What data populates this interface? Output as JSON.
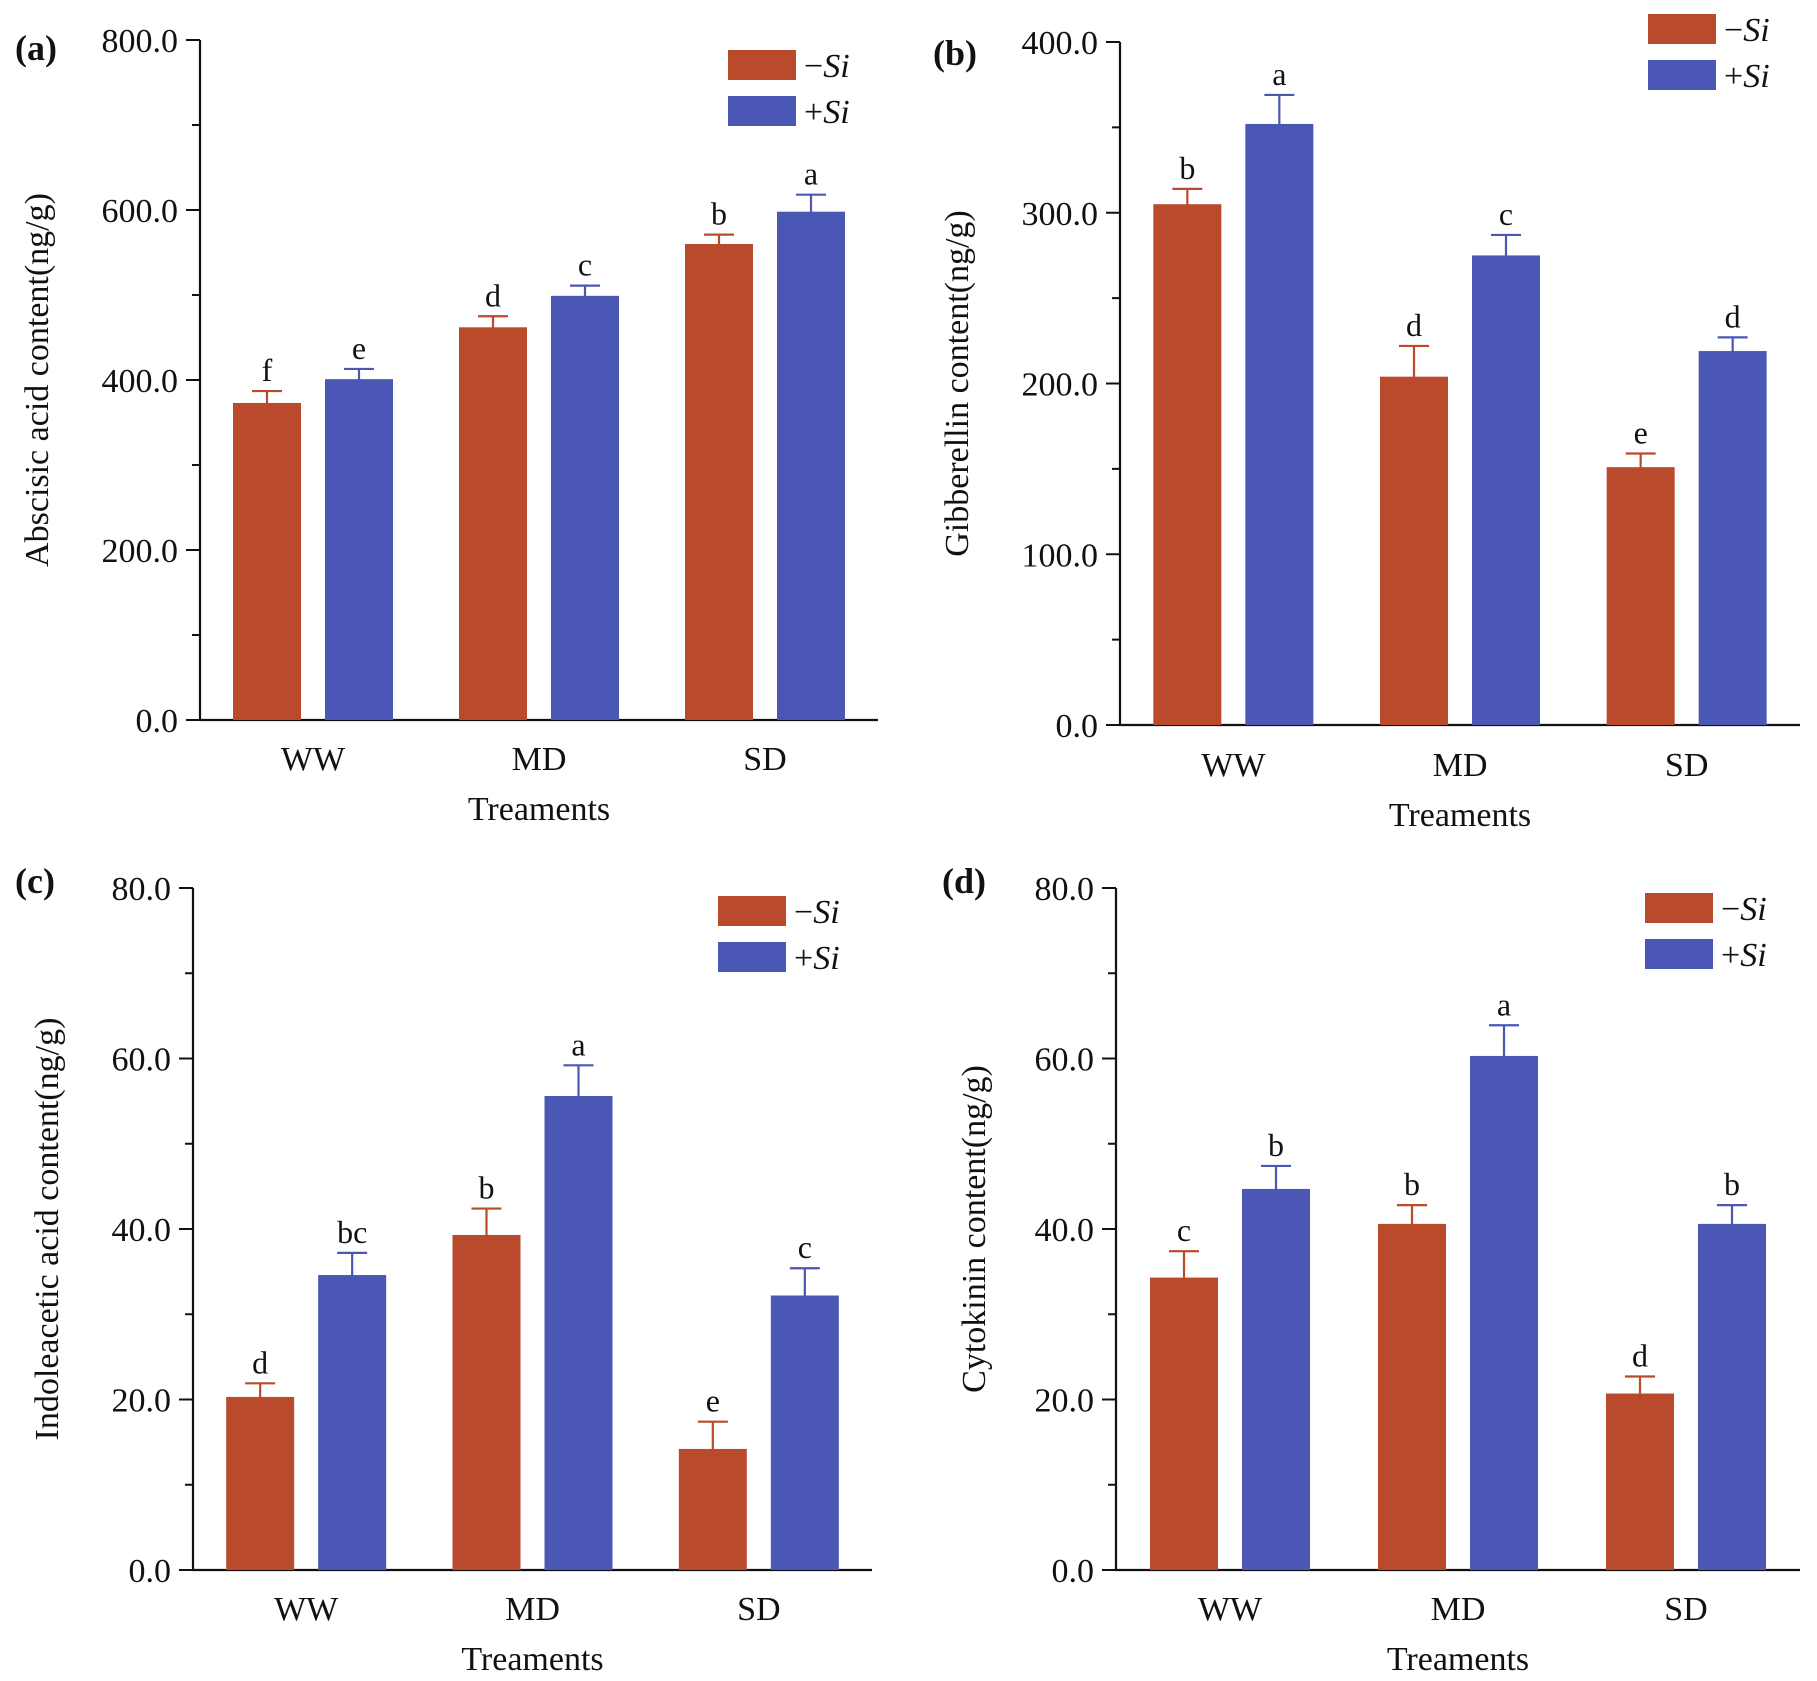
{
  "colors": {
    "minus_si": "#B94A2C",
    "plus_si": "#4A57B4"
  },
  "chart_data": [
    {
      "type": "bar",
      "panel_label": "(a)",
      "xlabel": "Treaments",
      "ylabel": "Abscisic acid content(ng/g)",
      "ylim": [
        0,
        800
      ],
      "yticks": [
        "0.0",
        "200.0",
        "400.0",
        "600.0",
        "800.0"
      ],
      "categories": [
        "WW",
        "MD",
        "SD"
      ],
      "legend": {
        "position": "top-right",
        "minus_sign": "−",
        "plus_sign": "+",
        "name": "Si"
      },
      "series": [
        {
          "name": "−Si",
          "values": [
            373,
            462,
            560
          ],
          "errors": [
            14,
            13,
            11
          ],
          "labels": [
            "f",
            "d",
            "b"
          ]
        },
        {
          "name": "+Si",
          "values": [
            401,
            499,
            598
          ],
          "errors": [
            12,
            12,
            20
          ],
          "labels": [
            "e",
            "c",
            "a"
          ]
        }
      ]
    },
    {
      "type": "bar",
      "panel_label": "(b)",
      "xlabel": "Treaments",
      "ylabel": "Gibberellin content(ng/g)",
      "ylim": [
        0,
        400
      ],
      "yticks": [
        "0.0",
        "100.0",
        "200.0",
        "300.0",
        "400.0"
      ],
      "categories": [
        "WW",
        "MD",
        "SD"
      ],
      "legend": {
        "position": "top-right",
        "minus_sign": "−",
        "plus_sign": "+",
        "name": "Si"
      },
      "series": [
        {
          "name": "−Si",
          "values": [
            305,
            204,
            151
          ],
          "errors": [
            9,
            18,
            8
          ],
          "labels": [
            "b",
            "d",
            "e"
          ]
        },
        {
          "name": "+Si",
          "values": [
            352,
            275,
            219
          ],
          "errors": [
            17,
            12,
            8
          ],
          "labels": [
            "a",
            "c",
            "d"
          ]
        }
      ]
    },
    {
      "type": "bar",
      "panel_label": "(c)",
      "xlabel": "Treaments",
      "ylabel": "Indoleacetic acid content(ng/g)",
      "ylim": [
        0,
        80
      ],
      "yticks": [
        "0.0",
        "20.0",
        "40.0",
        "60.0",
        "80.0"
      ],
      "categories": [
        "WW",
        "MD",
        "SD"
      ],
      "legend": {
        "position": "top-right",
        "minus_sign": "−",
        "plus_sign": "+",
        "name": "Si"
      },
      "series": [
        {
          "name": "−Si",
          "values": [
            20.3,
            39.3,
            14.2
          ],
          "errors": [
            1.6,
            3.1,
            3.2
          ],
          "labels": [
            "d",
            "b",
            "e"
          ]
        },
        {
          "name": "+Si",
          "values": [
            34.6,
            55.6,
            32.2
          ],
          "errors": [
            2.6,
            3.6,
            3.2
          ],
          "labels": [
            "bc",
            "a",
            "c"
          ]
        }
      ]
    },
    {
      "type": "bar",
      "panel_label": "(d)",
      "xlabel": "Treaments",
      "ylabel": "Cytokinin content(ng/g)",
      "ylim": [
        0,
        80
      ],
      "yticks": [
        "0.0",
        "20.0",
        "40.0",
        "60.0",
        "80.0"
      ],
      "categories": [
        "WW",
        "MD",
        "SD"
      ],
      "legend": {
        "position": "top-right",
        "minus_sign": "−",
        "plus_sign": "+",
        "name": "Si"
      },
      "series": [
        {
          "name": "−Si",
          "values": [
            34.3,
            40.6,
            20.7
          ],
          "errors": [
            3.1,
            2.2,
            2.0
          ],
          "labels": [
            "c",
            "b",
            "d"
          ]
        },
        {
          "name": "+Si",
          "values": [
            44.7,
            60.3,
            40.6
          ],
          "errors": [
            2.7,
            3.6,
            2.2
          ],
          "labels": [
            "b",
            "a",
            "b"
          ]
        }
      ]
    }
  ]
}
